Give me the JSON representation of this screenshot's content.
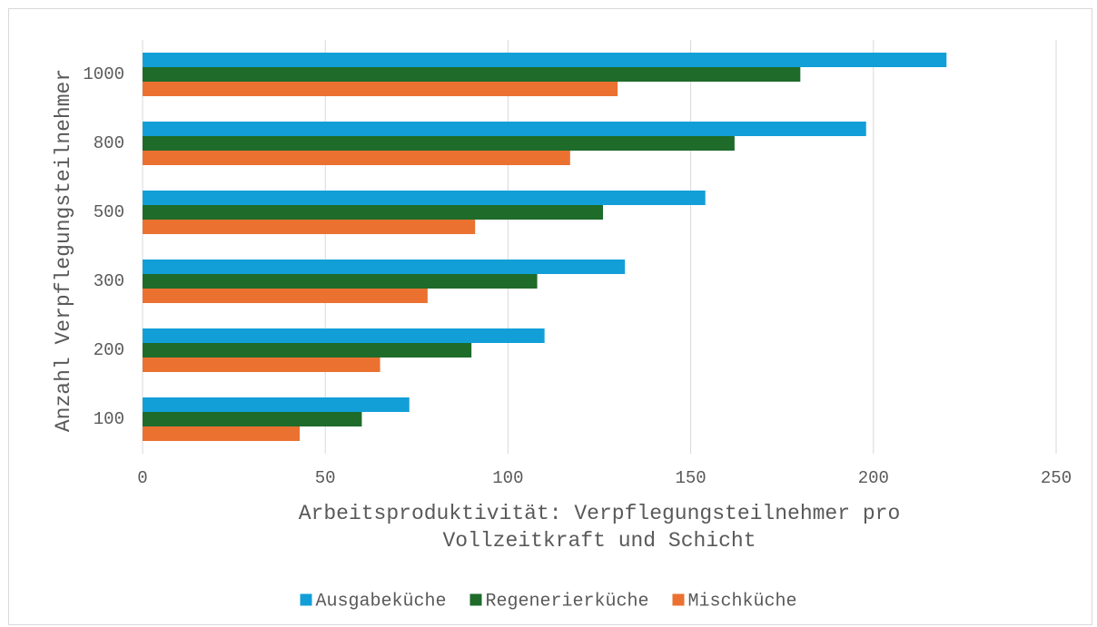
{
  "chart_data": {
    "type": "bar",
    "orientation": "horizontal",
    "categories": [
      "100",
      "200",
      "300",
      "500",
      "800",
      "1000"
    ],
    "series": [
      {
        "name": "Ausgabeküche",
        "color": "#129FD8",
        "values": [
          73,
          110,
          132,
          154,
          198,
          220
        ]
      },
      {
        "name": "Regenerierküche",
        "color": "#1E6B2A",
        "values": [
          60,
          90,
          108,
          126,
          162,
          180
        ]
      },
      {
        "name": "Mischküche",
        "color": "#EB7131",
        "values": [
          43,
          65,
          78,
          91,
          117,
          130
        ]
      }
    ],
    "xlabel_lines": [
      "Arbeitsproduktivität: Verpflegungsteilnehmer pro",
      "Vollzeitkraft und Schicht"
    ],
    "ylabel": "Anzahl Verpflegungsteilnehmer",
    "xlim": [
      0,
      250
    ],
    "xticks": [
      "0",
      "50",
      "100",
      "150",
      "200",
      "250"
    ],
    "grid": true,
    "legend_position": "bottom"
  }
}
